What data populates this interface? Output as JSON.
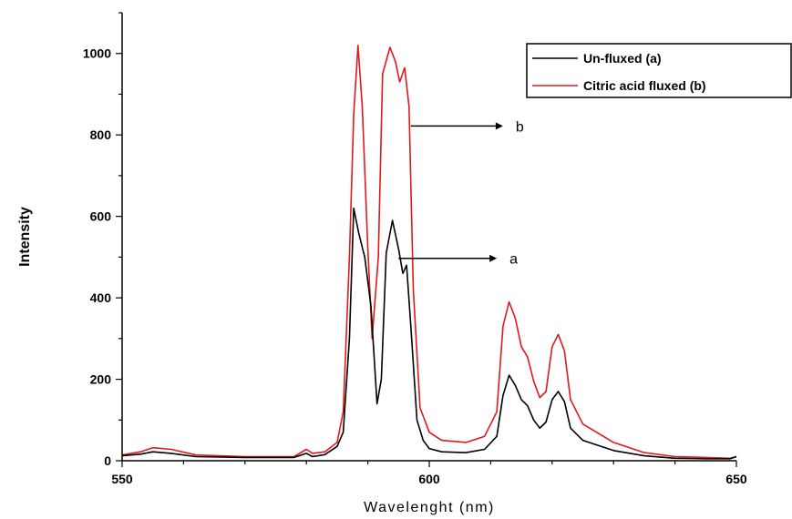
{
  "chart_data": {
    "type": "line",
    "xlabel": "Wavelenght (nm)",
    "ylabel": "Intensity",
    "xlim": [
      550,
      650
    ],
    "ylim": [
      0,
      1100
    ],
    "x_ticks": [
      550,
      600,
      650
    ],
    "y_ticks": [
      0,
      200,
      400,
      600,
      800,
      1000
    ],
    "legend_position": "top-right",
    "series": [
      {
        "name": "Un-fluxed (a)",
        "color": "#000000",
        "points": [
          [
            550,
            12
          ],
          [
            553,
            16
          ],
          [
            555,
            22
          ],
          [
            558,
            18
          ],
          [
            562,
            10
          ],
          [
            570,
            8
          ],
          [
            578,
            8
          ],
          [
            580,
            18
          ],
          [
            581,
            10
          ],
          [
            583,
            15
          ],
          [
            585,
            35
          ],
          [
            586,
            70
          ],
          [
            587,
            300
          ],
          [
            587.7,
            620
          ],
          [
            588.5,
            560
          ],
          [
            589.5,
            500
          ],
          [
            590.5,
            380
          ],
          [
            591.5,
            140
          ],
          [
            592.2,
            200
          ],
          [
            593,
            510
          ],
          [
            594,
            590
          ],
          [
            595,
            520
          ],
          [
            595.7,
            460
          ],
          [
            596.3,
            480
          ],
          [
            597,
            330
          ],
          [
            598,
            100
          ],
          [
            599,
            50
          ],
          [
            600,
            30
          ],
          [
            602,
            22
          ],
          [
            606,
            20
          ],
          [
            609,
            28
          ],
          [
            611,
            60
          ],
          [
            612,
            160
          ],
          [
            613,
            210
          ],
          [
            614,
            185
          ],
          [
            615,
            150
          ],
          [
            616,
            135
          ],
          [
            617,
            100
          ],
          [
            618,
            80
          ],
          [
            619,
            95
          ],
          [
            620,
            150
          ],
          [
            621,
            170
          ],
          [
            622,
            145
          ],
          [
            623,
            80
          ],
          [
            625,
            50
          ],
          [
            630,
            25
          ],
          [
            635,
            12
          ],
          [
            640,
            6
          ],
          [
            645,
            5
          ],
          [
            649,
            5
          ],
          [
            650,
            10
          ]
        ]
      },
      {
        "name": "Citric acid fluxed (b)",
        "color": "#e0191b",
        "points": [
          [
            550,
            14
          ],
          [
            553,
            22
          ],
          [
            555,
            32
          ],
          [
            558,
            28
          ],
          [
            562,
            14
          ],
          [
            570,
            10
          ],
          [
            578,
            10
          ],
          [
            580,
            28
          ],
          [
            581,
            18
          ],
          [
            583,
            22
          ],
          [
            585,
            45
          ],
          [
            586,
            120
          ],
          [
            587,
            500
          ],
          [
            587.7,
            850
          ],
          [
            588.4,
            1020
          ],
          [
            589.1,
            870
          ],
          [
            590,
            520
          ],
          [
            590.7,
            300
          ],
          [
            591.7,
            500
          ],
          [
            592.4,
            950
          ],
          [
            593.6,
            1015
          ],
          [
            594.5,
            980
          ],
          [
            595.2,
            930
          ],
          [
            596,
            965
          ],
          [
            596.7,
            870
          ],
          [
            597.4,
            420
          ],
          [
            598.5,
            130
          ],
          [
            600,
            70
          ],
          [
            602,
            50
          ],
          [
            606,
            45
          ],
          [
            609,
            60
          ],
          [
            611,
            120
          ],
          [
            612,
            330
          ],
          [
            613,
            390
          ],
          [
            614,
            350
          ],
          [
            615,
            280
          ],
          [
            616,
            255
          ],
          [
            617,
            195
          ],
          [
            618,
            155
          ],
          [
            619,
            170
          ],
          [
            620,
            280
          ],
          [
            621,
            310
          ],
          [
            622,
            270
          ],
          [
            623,
            150
          ],
          [
            625,
            90
          ],
          [
            630,
            45
          ],
          [
            635,
            20
          ],
          [
            640,
            10
          ],
          [
            645,
            8
          ],
          [
            649,
            6
          ],
          [
            650,
            10
          ]
        ]
      }
    ],
    "annotations": [
      {
        "text": "b",
        "arrow_from": [
          597,
          822
        ],
        "arrow_to": [
          612,
          822
        ]
      },
      {
        "text": "a",
        "arrow_from": [
          595,
          497
        ],
        "arrow_to": [
          611,
          497
        ]
      }
    ]
  }
}
